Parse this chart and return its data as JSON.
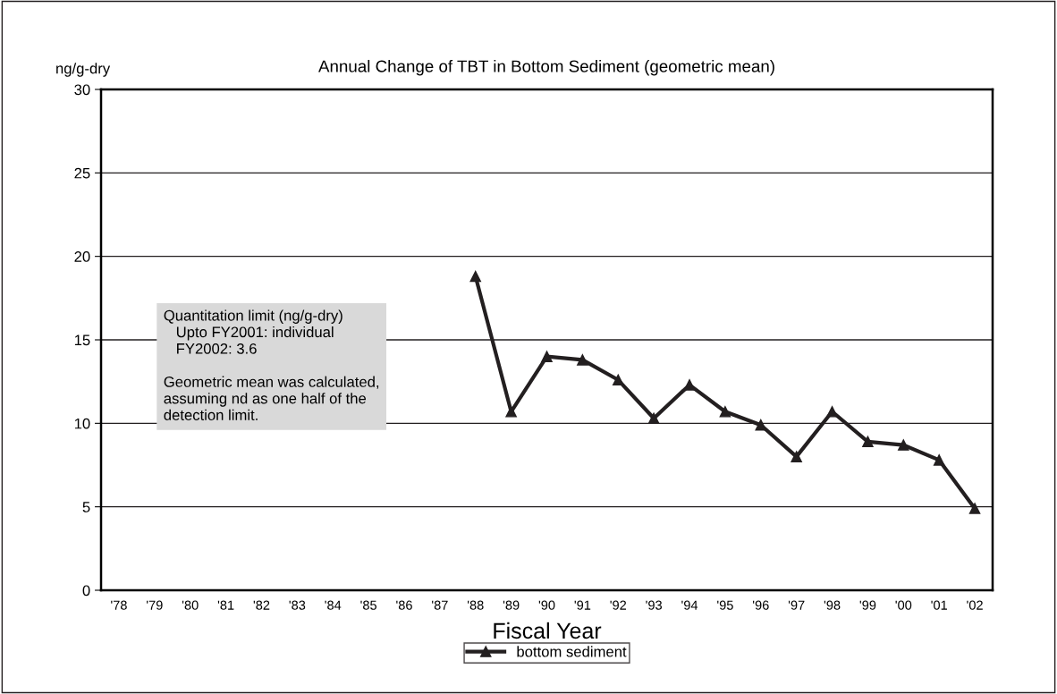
{
  "chart_data": {
    "type": "line",
    "title": "Annual Change of TBT in Bottom Sediment (geometric mean)",
    "xlabel": "Fiscal Year",
    "ylabel": "ng/g-dry",
    "categories": [
      "'78",
      "'79",
      "'80",
      "'81",
      "'82",
      "'83",
      "'84",
      "'85",
      "'86",
      "'87",
      "'88",
      "'89",
      "'90",
      "'91",
      "'92",
      "'93",
      "'94",
      "'95",
      "'96",
      "'97",
      "'98",
      "'99",
      "'00",
      "'01",
      "'02"
    ],
    "series": [
      {
        "name": "bottom sediment",
        "color": "#231f20",
        "values": [
          null,
          null,
          null,
          null,
          null,
          null,
          null,
          null,
          null,
          null,
          18.8,
          10.7,
          14.0,
          13.8,
          12.6,
          10.3,
          12.3,
          10.7,
          9.9,
          8.0,
          10.7,
          8.9,
          8.7,
          7.8,
          4.9
        ]
      }
    ],
    "ylim": [
      0,
      30
    ],
    "yticks": [
      0,
      5,
      10,
      15,
      20,
      25,
      30
    ],
    "grid": "y",
    "legend": "bottom",
    "marker": "triangle",
    "line_style": "solid",
    "annotations": [
      "Quantitation limit (ng/g-dry)\n   Upto FY2001: individual\n   FY2002: 3.6\n\nGeometric mean was calculated,\nassuming nd as one half of the\ndetection limit."
    ]
  }
}
